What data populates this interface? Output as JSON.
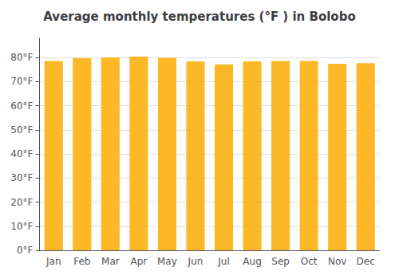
{
  "chart_data": {
    "type": "bar",
    "title": "Average monthly temperatures (°F ) in Bolobo",
    "categories": [
      "Jan",
      "Feb",
      "Mar",
      "Apr",
      "May",
      "Jun",
      "Jul",
      "Aug",
      "Sep",
      "Oct",
      "Nov",
      "Dec"
    ],
    "values": [
      78.6,
      79.7,
      80.1,
      80.4,
      79.9,
      78.4,
      77.2,
      78.4,
      78.6,
      78.6,
      77.4,
      77.7
    ],
    "color": "#FDB827",
    "ylim": [
      0,
      88
    ],
    "yticks": [
      {
        "value": 0,
        "label": "0°F"
      },
      {
        "value": 10,
        "label": "10°F"
      },
      {
        "value": 20,
        "label": "20°F"
      },
      {
        "value": 30,
        "label": "30°F"
      },
      {
        "value": 40,
        "label": "40°F"
      },
      {
        "value": 50,
        "label": "50°F"
      },
      {
        "value": 60,
        "label": "60°F"
      },
      {
        "value": 70,
        "label": "70°F"
      },
      {
        "value": 80,
        "label": "80°F"
      }
    ],
    "grid": true
  }
}
